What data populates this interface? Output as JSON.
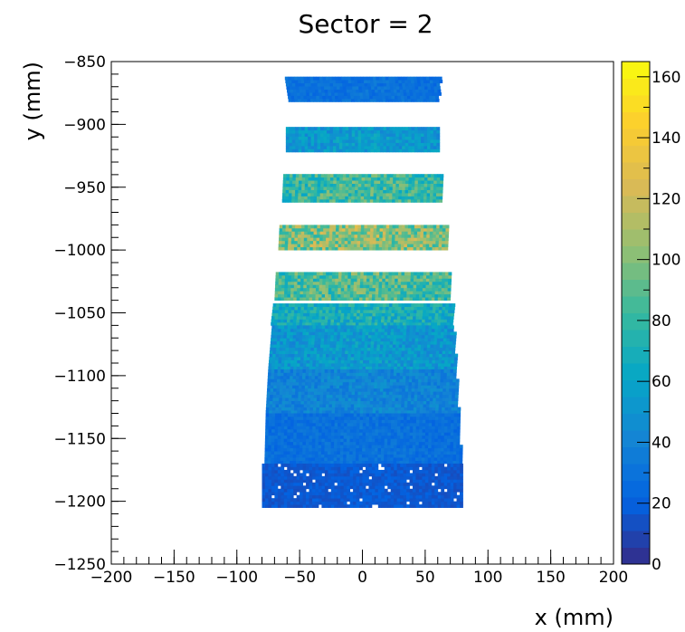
{
  "chart_data": {
    "type": "heatmap",
    "title": "Sector = 2",
    "xlabel": "x (mm)",
    "ylabel": "y (mm)",
    "xlim": [
      -200,
      200
    ],
    "ylim": [
      -1250,
      -850
    ],
    "x_ticks": [
      -200,
      -150,
      -100,
      -50,
      0,
      50,
      100,
      150,
      200
    ],
    "y_ticks": [
      -1250,
      -1200,
      -1150,
      -1100,
      -1050,
      -1000,
      -950,
      -900,
      -850
    ],
    "colorbar": {
      "range": [
        0,
        165
      ],
      "ticks": [
        0,
        20,
        40,
        60,
        80,
        100,
        120,
        140,
        160
      ],
      "palette": [
        "#352a87",
        "#0363e1",
        "#1485d4",
        "#06a7c6",
        "#38b99e",
        "#92bf73",
        "#d9ba56",
        "#fcce2e",
        "#f9fb0e"
      ]
    },
    "bands": [
      {
        "y": [
          -882,
          -863
        ],
        "x_left": [
          -59,
          -62
        ],
        "x_right": [
          60,
          62
        ],
        "level": 30
      },
      {
        "y": [
          -922,
          -902
        ],
        "x_left": [
          -61,
          -61
        ],
        "x_right": [
          61,
          61
        ],
        "level": 55
      },
      {
        "y": [
          -962,
          -941
        ],
        "x_left": [
          -64,
          -63
        ],
        "x_right": [
          63,
          64
        ],
        "level": 85
      },
      {
        "y": [
          -1000,
          -980
        ],
        "x_left": [
          -67,
          -66
        ],
        "x_right": [
          66,
          67
        ],
        "level": 105
      },
      {
        "y": [
          -1040,
          -1019
        ],
        "x_left": [
          -70,
          -69
        ],
        "x_right": [
          70,
          70
        ],
        "level": 90
      },
      {
        "y": [
          -1060,
          -1043
        ],
        "x_left": [
          -73,
          -71
        ],
        "x_right": [
          72,
          73
        ],
        "level": 70
      },
      {
        "y": [
          -1095,
          -1060
        ],
        "x_left": [
          -75,
          -72
        ],
        "x_right": [
          74,
          72
        ],
        "level": 55
      },
      {
        "y": [
          -1130,
          -1095
        ],
        "x_left": [
          -77,
          -75
        ],
        "x_right": [
          76,
          74
        ],
        "level": 42
      },
      {
        "y": [
          -1170,
          -1130
        ],
        "x_left": [
          -78,
          -77
        ],
        "x_right": [
          78,
          76
        ],
        "level": 30
      },
      {
        "y": [
          -1205,
          -1170
        ],
        "x_left": [
          -80,
          -80
        ],
        "x_right": [
          80,
          80
        ],
        "level": 18
      }
    ]
  }
}
